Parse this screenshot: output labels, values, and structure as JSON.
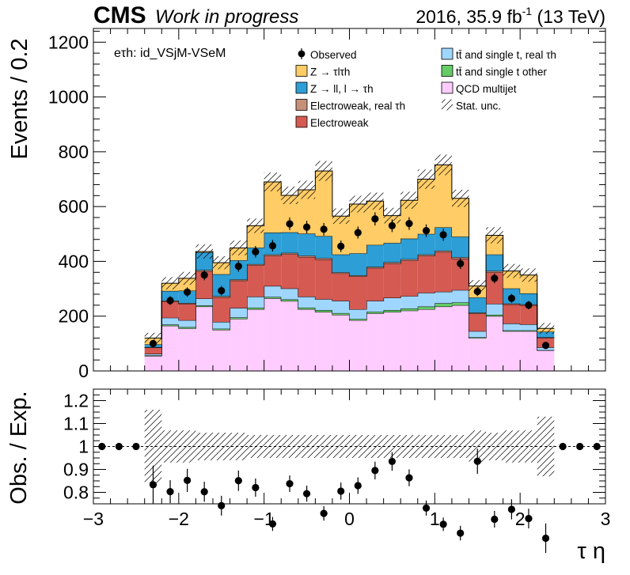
{
  "header": {
    "cms": "CMS",
    "status": "Work in progress",
    "lumi_prefix": "2016, 35.9 fb",
    "lumi_sup": "-1",
    "lumi_suffix": " (13 TeV)"
  },
  "colors": {
    "qcd": "#ffccff",
    "ttbar_other": "#66cc66",
    "ttbar_real": "#9fd6ff",
    "ewk": "#d45a52",
    "ewk_real": "#c68f7a",
    "zll": "#2d9ed6",
    "ztt": "#ffcc66",
    "obs": "#000000",
    "hatch": "#000000"
  },
  "chart_data": [
    {
      "type": "bar",
      "stacked": true,
      "channel_label": "eτh: id_VSjM-VSeM",
      "ylabel": "Events / 0.2",
      "xlim": [
        -3,
        3
      ],
      "ylim": [
        0,
        1250
      ],
      "x_ticks": [
        -3,
        -2,
        -1,
        0,
        1,
        2,
        3
      ],
      "y_ticks": [
        0,
        200,
        400,
        600,
        800,
        1000,
        1200
      ],
      "legend_position": "top",
      "bin_edges": [
        -2.4,
        -2.2,
        -2.0,
        -1.8,
        -1.6,
        -1.4,
        -1.2,
        -1.0,
        -0.8,
        -0.6,
        -0.4,
        -0.2,
        0.0,
        0.2,
        0.4,
        0.6,
        0.8,
        1.0,
        1.2,
        1.4,
        1.6,
        1.8,
        2.0,
        2.2,
        2.4
      ],
      "series": [
        {
          "name": "QCD multijet",
          "key": "qcd",
          "values": [
            55,
            165,
            155,
            235,
            150,
            190,
            225,
            265,
            255,
            225,
            215,
            205,
            185,
            210,
            215,
            220,
            225,
            235,
            240,
            120,
            200,
            145,
            145,
            75
          ]
        },
        {
          "name": "tt̄ and single t other",
          "key": "ttbar_other",
          "values": [
            2,
            4,
            5,
            4,
            4,
            5,
            6,
            5,
            6,
            6,
            7,
            6,
            5,
            6,
            7,
            8,
            10,
            12,
            10,
            3,
            5,
            3,
            3,
            1
          ]
        },
        {
          "name": "tt̄ and single t, real τh",
          "key": "ttbar_real",
          "values": [
            5,
            25,
            25,
            25,
            25,
            35,
            40,
            40,
            40,
            40,
            40,
            45,
            35,
            40,
            45,
            45,
            50,
            42,
            45,
            22,
            40,
            25,
            22,
            10
          ]
        },
        {
          "name": "Electroweak",
          "key": "ewk",
          "values": [
            23,
            60,
            60,
            100,
            90,
            100,
            115,
            110,
            125,
            145,
            145,
            100,
            120,
            120,
            125,
            130,
            135,
            145,
            115,
            65,
            115,
            70,
            70,
            35
          ]
        },
        {
          "name": "Electroweak, real τh",
          "key": "ewk_real",
          "values": [
            2,
            3,
            3,
            4,
            4,
            4,
            4,
            5,
            5,
            5,
            5,
            4,
            4,
            4,
            5,
            5,
            5,
            5,
            5,
            3,
            5,
            3,
            3,
            2
          ]
        },
        {
          "name": "Z → ll, l → τh",
          "key": "zll",
          "values": [
            10,
            35,
            45,
            65,
            80,
            70,
            60,
            80,
            75,
            80,
            80,
            65,
            80,
            80,
            70,
            75,
            75,
            85,
            75,
            55,
            60,
            55,
            40,
            20
          ]
        },
        {
          "name": "Z → τlτh",
          "key": "ztt",
          "values": [
            23,
            28,
            45,
            3,
            42,
            45,
            80,
            185,
            135,
            160,
            238,
            140,
            180,
            160,
            100,
            140,
            200,
            228,
            140,
            42,
            70,
            64,
            67,
            12
          ]
        }
      ],
      "observed": {
        "name": "Observed",
        "x": [
          -2.3,
          -2.1,
          -1.9,
          -1.7,
          -1.5,
          -1.3,
          -1.1,
          -0.9,
          -0.7,
          -0.5,
          -0.3,
          -0.1,
          0.1,
          0.3,
          0.5,
          0.7,
          0.9,
          1.1,
          1.3,
          1.5,
          1.7,
          1.9,
          2.1,
          2.3
        ],
        "y": [
          100,
          257,
          288,
          350,
          293,
          382,
          435,
          457,
          537,
          525,
          517,
          455,
          505,
          555,
          530,
          538,
          512,
          497,
          392,
          290,
          338,
          265,
          240,
          93
        ],
        "err": [
          10,
          16,
          17,
          19,
          17,
          20,
          21,
          21,
          23,
          23,
          23,
          21,
          22,
          24,
          23,
          23,
          23,
          22,
          20,
          17,
          18,
          16,
          15,
          10
        ]
      },
      "stat_unc_label": "Stat. unc.",
      "stat_unc_rel": [
        0.16,
        0.07,
        0.07,
        0.06,
        0.06,
        0.06,
        0.05,
        0.05,
        0.05,
        0.05,
        0.05,
        0.05,
        0.05,
        0.05,
        0.05,
        0.05,
        0.05,
        0.05,
        0.05,
        0.07,
        0.06,
        0.07,
        0.07,
        0.13
      ]
    },
    {
      "type": "scatter",
      "ylabel": "Obs. / Exp.",
      "xlabel": "τ η",
      "xlim": [
        -3,
        3
      ],
      "ylim": [
        0.75,
        1.25
      ],
      "x_ticks": [
        -3,
        -2,
        -1,
        0,
        1,
        2,
        3
      ],
      "y_ticks": [
        0.8,
        0.9,
        1,
        1.1,
        1.2
      ],
      "y_tick_labels": [
        "0.8",
        "0.9",
        "1",
        "1.1",
        "1.2"
      ],
      "reference_line": 1.0,
      "x": [
        -2.9,
        -2.7,
        -2.5,
        -2.3,
        -2.1,
        -1.9,
        -1.7,
        -1.5,
        -1.3,
        -1.1,
        -0.9,
        -0.7,
        -0.5,
        -0.3,
        -0.1,
        0.1,
        0.3,
        0.5,
        0.7,
        0.9,
        1.1,
        1.3,
        1.5,
        1.7,
        1.9,
        2.1,
        2.3,
        2.5,
        2.7,
        2.9
      ],
      "y": [
        1.0,
        1.0,
        1.0,
        0.84,
        0.8,
        0.84,
        0.8,
        null,
        0.8,
        0.83,
        0.84,
        0.78,
        null,
        0.81,
        0.82,
        0.9,
        0.92,
        0.83,
        0.84,
        0.78,
        0.94,
        0.86,
        0.84,
        0.81,
        1.0,
        1.0,
        1.0,
        null,
        null,
        null
      ],
      "err": [
        0,
        0,
        0,
        0.05,
        0.04,
        0.04,
        0.03,
        0,
        0.03,
        0.03,
        0.03,
        0.02,
        0,
        0.03,
        0.03,
        0.03,
        0.03,
        0.03,
        0.03,
        0.02,
        0.04,
        0.04,
        0.04,
        0.04,
        0,
        0,
        0,
        0,
        0,
        0
      ]
    }
  ]
}
